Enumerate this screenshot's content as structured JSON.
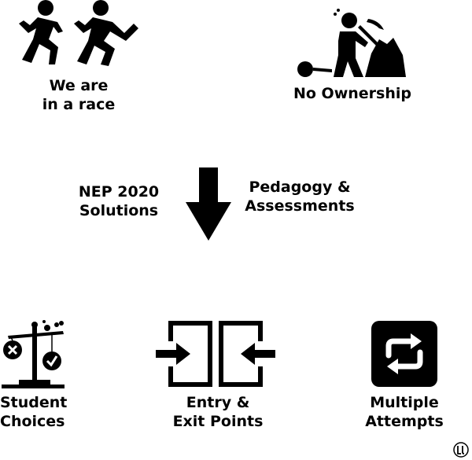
{
  "top_left": {
    "line1": "We are",
    "line2": "in a race",
    "icon": "running-people-icon"
  },
  "top_right": {
    "label": "No Ownership",
    "icon": "miner-with-ball-and-chain-icon"
  },
  "middle": {
    "left": {
      "line1": "NEP 2020",
      "line2": "Solutions"
    },
    "right": {
      "line1": "Pedagogy &",
      "line2": "Assessments"
    },
    "icon": "down-arrow-icon"
  },
  "bottom": [
    {
      "line1": "Student",
      "line2": "Choices",
      "icon": "balance-scale-icon"
    },
    {
      "line1": "Entry &",
      "line2": "Exit Points",
      "icon": "entry-exit-doors-icon"
    },
    {
      "line1": "Multiple",
      "line2": "Attempts",
      "icon": "repeat-icon"
    }
  ],
  "colors": {
    "ink": "#000000",
    "background": "#ffffff"
  }
}
